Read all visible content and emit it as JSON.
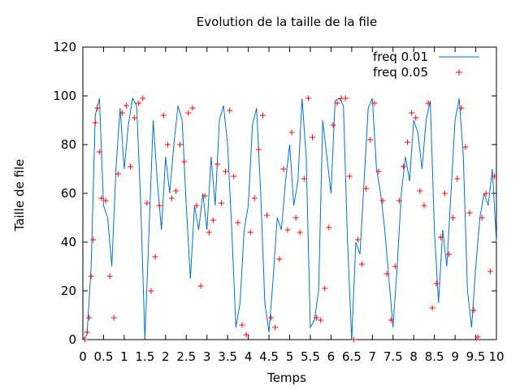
{
  "chart_data": {
    "type": "line",
    "title": "Evolution de la taille de la file",
    "xlabel": "Temps",
    "ylabel": "Taille de file",
    "xlim": [
      0,
      10
    ],
    "ylim": [
      0,
      120
    ],
    "x_ticks": [
      0,
      0.5,
      1,
      1.5,
      2,
      2.5,
      3,
      3.5,
      4,
      4.5,
      5,
      5.5,
      6,
      6.5,
      7,
      7.5,
      8,
      8.5,
      9,
      9.5,
      10
    ],
    "x_tick_labels": [
      "0",
      "0.5",
      "1",
      "1.5",
      "2",
      "2.5",
      "3",
      "3.5",
      "4",
      "4.5",
      "5",
      "5.5",
      "6",
      "6.5",
      "7",
      "7.5",
      "8",
      "8.5",
      "9",
      "9.5",
      "10"
    ],
    "y_ticks": [
      0,
      20,
      40,
      60,
      80,
      100,
      120
    ],
    "y_tick_labels": [
      "0",
      "20",
      "40",
      "60",
      "80",
      "100",
      "120"
    ],
    "grid": false,
    "legend_position": "top-right",
    "series": [
      {
        "name": "freq 0.01",
        "style": "line",
        "color": "#0072d0",
        "x": [
          0,
          0.1,
          0.2,
          0.3,
          0.4,
          0.5,
          0.6,
          0.7,
          0.8,
          0.9,
          1.0,
          1.1,
          1.2,
          1.3,
          1.4,
          1.5,
          1.6,
          1.7,
          1.8,
          1.9,
          2.0,
          2.1,
          2.2,
          2.3,
          2.4,
          2.5,
          2.6,
          2.7,
          2.8,
          2.9,
          3.0,
          3.1,
          3.2,
          3.3,
          3.4,
          3.5,
          3.6,
          3.7,
          3.8,
          3.9,
          4.0,
          4.1,
          4.2,
          4.3,
          4.4,
          4.5,
          4.6,
          4.7,
          4.8,
          4.9,
          5.0,
          5.1,
          5.2,
          5.3,
          5.4,
          5.5,
          5.6,
          5.7,
          5.8,
          5.9,
          6.0,
          6.1,
          6.2,
          6.3,
          6.4,
          6.5,
          6.6,
          6.7,
          6.8,
          6.9,
          7.0,
          7.1,
          7.2,
          7.3,
          7.4,
          7.5,
          7.6,
          7.7,
          7.8,
          7.9,
          8.0,
          8.1,
          8.2,
          8.3,
          8.4,
          8.5,
          8.6,
          8.7,
          8.8,
          8.9,
          9.0,
          9.1,
          9.2,
          9.3,
          9.4,
          9.5,
          9.6,
          9.7,
          9.8,
          9.9,
          10.0
        ],
        "values": [
          0,
          2,
          30,
          92,
          99,
          55,
          50,
          30,
          70,
          95,
          70,
          88,
          99,
          96,
          55,
          0,
          45,
          90,
          65,
          45,
          75,
          60,
          80,
          96,
          90,
          55,
          25,
          55,
          45,
          60,
          45,
          75,
          55,
          90,
          96,
          80,
          45,
          5,
          15,
          45,
          55,
          88,
          95,
          60,
          15,
          3,
          25,
          50,
          45,
          65,
          80,
          55,
          65,
          99,
          75,
          5,
          8,
          20,
          90,
          75,
          60,
          98,
          99,
          96,
          40,
          0,
          40,
          35,
          65,
          95,
          99,
          70,
          60,
          45,
          25,
          5,
          30,
          60,
          75,
          65,
          90,
          85,
          70,
          90,
          98,
          45,
          15,
          45,
          30,
          60,
          90,
          99,
          75,
          20,
          5,
          30,
          50,
          60,
          55,
          70,
          40
        ]
      },
      {
        "name": "freq 0.05",
        "style": "points",
        "color": "#ff0000",
        "x": [
          0.05,
          0.1,
          0.15,
          0.2,
          0.25,
          0.3,
          0.35,
          0.4,
          0.45,
          0.55,
          0.65,
          0.75,
          0.85,
          0.95,
          1.05,
          1.15,
          1.25,
          1.35,
          1.45,
          1.55,
          1.65,
          1.75,
          1.85,
          1.95,
          2.05,
          2.15,
          2.25,
          2.35,
          2.45,
          2.55,
          2.65,
          2.75,
          2.85,
          2.95,
          3.05,
          3.15,
          3.25,
          3.35,
          3.45,
          3.55,
          3.65,
          3.75,
          3.85,
          3.95,
          4.05,
          4.15,
          4.25,
          4.35,
          4.45,
          4.55,
          4.65,
          4.75,
          4.85,
          4.95,
          5.05,
          5.15,
          5.25,
          5.35,
          5.45,
          5.55,
          5.65,
          5.75,
          5.85,
          5.95,
          6.05,
          6.15,
          6.25,
          6.35,
          6.45,
          6.55,
          6.65,
          6.75,
          6.85,
          6.95,
          7.05,
          7.15,
          7.25,
          7.35,
          7.45,
          7.55,
          7.65,
          7.75,
          7.85,
          7.95,
          8.05,
          8.15,
          8.25,
          8.35,
          8.45,
          8.55,
          8.65,
          8.75,
          8.85,
          8.95,
          9.05,
          9.15,
          9.25,
          9.35,
          9.45,
          9.55,
          9.65,
          9.75,
          9.85,
          9.95
        ],
        "values": [
          0,
          3,
          9,
          26,
          41,
          89,
          95,
          77,
          58,
          57,
          26,
          9,
          68,
          93,
          96,
          71,
          91,
          97,
          99,
          56,
          20,
          34,
          55,
          92,
          80,
          58,
          61,
          80,
          73,
          93,
          95,
          55,
          22,
          59,
          44,
          49,
          72,
          56,
          69,
          94,
          67,
          48,
          6,
          2,
          44,
          58,
          78,
          92,
          51,
          9,
          5,
          33,
          70,
          45,
          85,
          50,
          44,
          66,
          99,
          83,
          9,
          8,
          21,
          46,
          88,
          97,
          99,
          99,
          67,
          0,
          41,
          31,
          62,
          82,
          97,
          69,
          57,
          27,
          8,
          30,
          57,
          71,
          81,
          93,
          91,
          61,
          55,
          97,
          13,
          23,
          42,
          60,
          35,
          50,
          66,
          95,
          79,
          52,
          12,
          1,
          50,
          60,
          28,
          67
        ]
      }
    ]
  }
}
